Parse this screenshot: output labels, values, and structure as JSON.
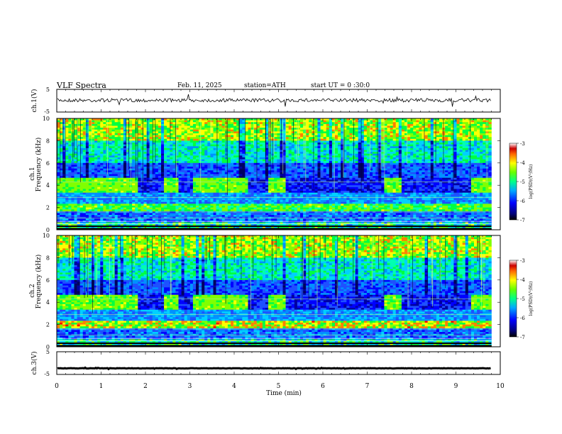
{
  "header": {
    "title": "VLF Spectra",
    "date": "Feb. 11, 2025",
    "station": "station=ATH",
    "start": "start UT =  0 :30:0"
  },
  "chart_data": [
    {
      "type": "line",
      "panel": "ch1-waveform",
      "ylabel": "ch.1(V)",
      "ylim": [
        -5,
        5
      ],
      "yticks": [
        "5",
        "-5"
      ],
      "xlim": [
        0,
        10
      ],
      "series": [
        {
          "values_note": "dense noise trace around +0.2 V",
          "mean": 0.2
        }
      ]
    },
    {
      "type": "heatmap",
      "panel": "ch1-spectrogram",
      "ylabel_top": "ch.1",
      "ylabel": "Frequency (kHz)",
      "ylim": [
        0,
        10
      ],
      "yticks": [
        "0",
        "2",
        "4",
        "6",
        "8",
        "10"
      ],
      "xlim": [
        0,
        10
      ],
      "colorbar": {
        "label": "log(PSD)(V²/Hz)",
        "range": [
          -7,
          -3
        ],
        "ticks": [
          "-3",
          "-4",
          "-5",
          "-6",
          "-7"
        ]
      },
      "bright_band_khz": 4,
      "bright_band_intervals_min": [
        [
          0,
          1.8
        ],
        [
          2.4,
          2.75
        ],
        [
          3.05,
          4.3
        ],
        [
          4.8,
          5.15
        ],
        [
          7.4,
          7.8
        ],
        [
          9.35,
          9.8
        ]
      ]
    },
    {
      "type": "heatmap",
      "panel": "ch2-spectrogram",
      "ylabel_top": "ch.2",
      "ylabel": "Frequency (kHz)",
      "ylim": [
        0,
        10
      ],
      "yticks": [
        "0",
        "2",
        "4",
        "6",
        "8",
        "10"
      ],
      "xlim": [
        0,
        10
      ],
      "colorbar": {
        "label": "log(PSD)(V²/Hz)",
        "range": [
          -7,
          -3
        ],
        "ticks": [
          "-3",
          "-4",
          "-5",
          "-6",
          "-7"
        ]
      },
      "bright_band_khz": 4,
      "bright_band_intervals_min": [
        [
          0,
          1.8
        ],
        [
          2.4,
          2.75
        ],
        [
          3.05,
          4.3
        ],
        [
          4.8,
          5.15
        ],
        [
          7.4,
          7.8
        ],
        [
          9.35,
          9.8
        ]
      ]
    },
    {
      "type": "line",
      "panel": "ch3-waveform",
      "ylabel": "ch.3(V)",
      "ylim": [
        -5,
        5
      ],
      "yticks": [
        "5",
        "-5"
      ],
      "xlim": [
        0,
        10
      ],
      "xlabel": "Time (min)",
      "xticks": [
        "0",
        "1",
        "2",
        "3",
        "4",
        "5",
        "6",
        "7",
        "8",
        "9",
        "10"
      ],
      "series": [
        {
          "values_note": "flat trace near -2.3 V",
          "mean": -2.3
        }
      ]
    }
  ]
}
